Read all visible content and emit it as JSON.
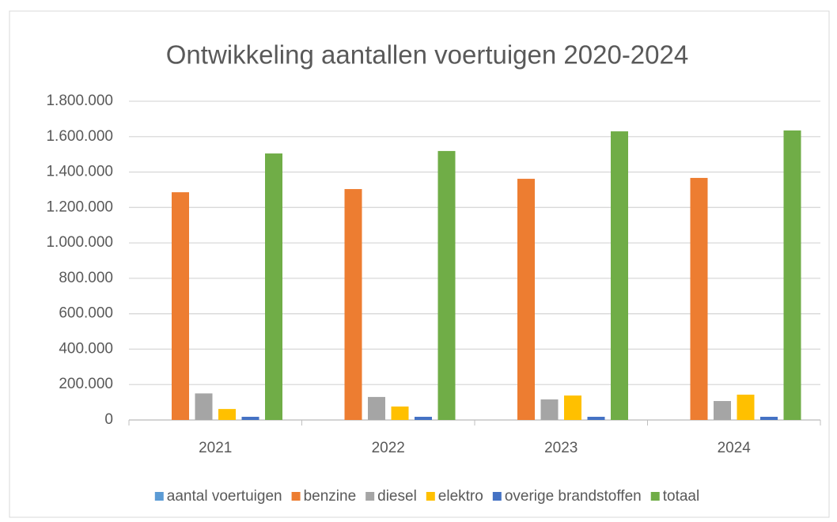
{
  "chart_data": {
    "type": "bar",
    "title": "Ontwikkeling aantallen voertuigen 2020-2024",
    "categories": [
      "2021",
      "2022",
      "2023",
      "2024"
    ],
    "series": [
      {
        "name": "aantal voertuigen",
        "color": "#5b9bd5",
        "values": [
          0,
          0,
          0,
          0
        ]
      },
      {
        "name": "benzine",
        "color": "#ed7d31",
        "values": [
          1286000,
          1304000,
          1362000,
          1367000
        ]
      },
      {
        "name": "diesel",
        "color": "#a5a5a5",
        "values": [
          150000,
          130000,
          116000,
          107000
        ]
      },
      {
        "name": "elektro",
        "color": "#ffc000",
        "values": [
          62000,
          76000,
          138000,
          143000
        ]
      },
      {
        "name": "overige brandstoffen",
        "color": "#4472c4",
        "values": [
          18000,
          18000,
          18000,
          18000
        ]
      },
      {
        "name": "totaal",
        "color": "#70ad47",
        "values": [
          1505000,
          1519000,
          1630000,
          1635000
        ]
      }
    ],
    "ylim": [
      0,
      1800000
    ],
    "yticks": [
      0,
      {
        "value": 200000,
        "label": "200.000"
      },
      {
        "value": 400000,
        "label": "400.000"
      },
      {
        "value": 600000,
        "label": "600.000"
      },
      {
        "value": 800000,
        "label": "800.000"
      },
      {
        "value": 1000000,
        "label": "1.000.000"
      },
      {
        "value": 1200000,
        "label": "1.200.000"
      },
      {
        "value": 1400000,
        "label": "1.400.000"
      },
      {
        "value": 1600000,
        "label": "1.600.000"
      },
      {
        "value": 1800000,
        "label": "1.800.000"
      }
    ],
    "grid": true,
    "legend": "bottom"
  }
}
